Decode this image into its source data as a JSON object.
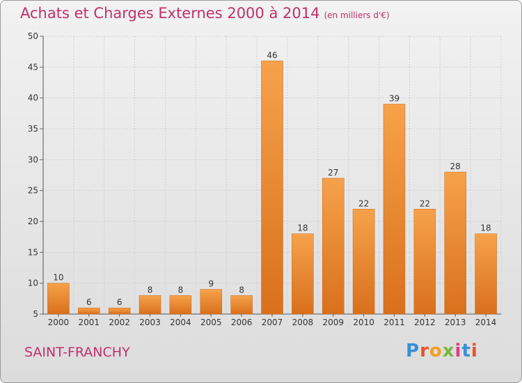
{
  "header": {
    "title": "Achats et Charges Externes 2000 à 2014",
    "unit": "(en milliers d'€)"
  },
  "footer": {
    "city": "SAINT-FRANCHY",
    "logo_text": "Proxiti",
    "logo_colors": [
      "#3a8fd8",
      "#e8542a",
      "#f0a020",
      "#7ab83a",
      "#e03a8a",
      "#3a8fd8",
      "#e8542a"
    ]
  },
  "colors": {
    "bar_light": "#f6a24a",
    "bar_dark": "#d9701c",
    "title": "#c0306a"
  },
  "chart_data": {
    "type": "bar",
    "categories": [
      "2000",
      "2001",
      "2002",
      "2003",
      "2004",
      "2005",
      "2006",
      "2007",
      "2008",
      "2009",
      "2010",
      "2011",
      "2012",
      "2013",
      "2014"
    ],
    "values": [
      10,
      6,
      6,
      8,
      8,
      9,
      8,
      46,
      18,
      27,
      22,
      39,
      22,
      28,
      18
    ],
    "ylim": [
      5,
      50
    ],
    "yticks": [
      5,
      10,
      15,
      20,
      25,
      30,
      35,
      40,
      45,
      50
    ],
    "grid": true,
    "legend": "none"
  }
}
